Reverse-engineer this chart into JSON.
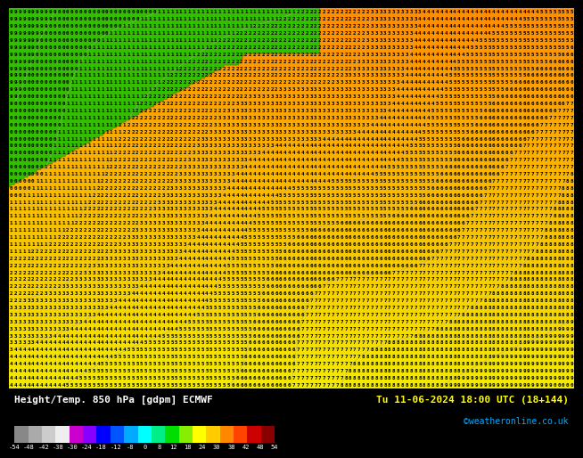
{
  "title_left": "Height/Temp. 850 hPa [gdpm] ECMWF",
  "title_right": "Tu 11-06-2024 18:00 UTC (18+144)",
  "copyright": "©weatheronline.co.uk",
  "colorbar_colors": [
    "#888888",
    "#aaaaaa",
    "#cccccc",
    "#eeeeee",
    "#cc00cc",
    "#8800ff",
    "#0000ff",
    "#0055ff",
    "#00aaff",
    "#00ffff",
    "#00ee88",
    "#00dd00",
    "#88ee00",
    "#ffff00",
    "#ffcc00",
    "#ff8800",
    "#ff4400",
    "#cc0000",
    "#880000"
  ],
  "cb_labels": [
    "-54",
    "-48",
    "-42",
    "-38",
    "-30",
    "-24",
    "-18",
    "-12",
    "-8",
    "0",
    "8",
    "12",
    "18",
    "24",
    "30",
    "38",
    "42",
    "48",
    "54"
  ]
}
